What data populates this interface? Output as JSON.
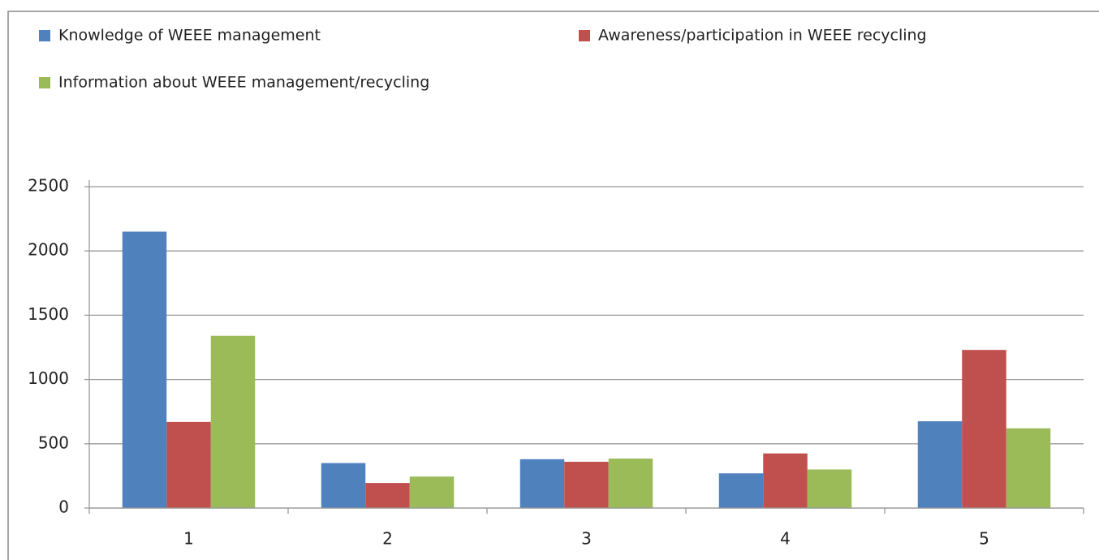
{
  "chart_data": {
    "type": "bar",
    "categories": [
      "1",
      "2",
      "3",
      "4",
      "5"
    ],
    "series": [
      {
        "name": "Knowledge of WEEE management",
        "color": "#4f81bd",
        "values": [
          2150,
          350,
          380,
          270,
          675
        ]
      },
      {
        "name": "Awareness/participation in WEEE recycling",
        "color": "#c0504d",
        "values": [
          670,
          195,
          360,
          425,
          1230
        ]
      },
      {
        "name": "Information about WEEE management/recycling",
        "color": "#9bbb59",
        "values": [
          1340,
          245,
          385,
          300,
          620
        ]
      }
    ],
    "ylim": [
      0,
      2500
    ],
    "yticks": [
      0,
      500,
      1000,
      1500,
      2000,
      2500
    ],
    "grid": true,
    "legend": "top"
  }
}
